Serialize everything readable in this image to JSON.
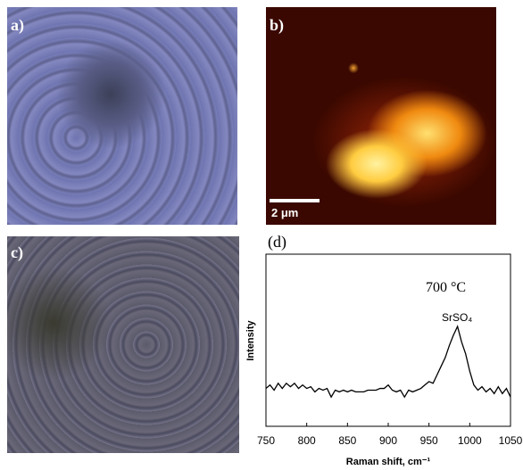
{
  "panels": {
    "a": "a)",
    "b": "b)",
    "c": "c)"
  },
  "scale_bar": "2 μm",
  "chart_data": {
    "type": "line",
    "panel_label": "(d)",
    "annotations": [
      "700 °C",
      "SrSO₄"
    ],
    "xlabel": "Raman shift, cm⁻¹",
    "ylabel": "Intensity",
    "x": [
      750,
      755,
      760,
      765,
      770,
      775,
      780,
      785,
      790,
      795,
      800,
      805,
      810,
      815,
      820,
      825,
      830,
      835,
      840,
      845,
      850,
      855,
      860,
      865,
      870,
      875,
      880,
      885,
      890,
      895,
      900,
      905,
      910,
      915,
      920,
      925,
      930,
      935,
      940,
      945,
      950,
      955,
      960,
      965,
      970,
      975,
      980,
      985,
      990,
      995,
      1000,
      1005,
      1010,
      1015,
      1020,
      1025,
      1030,
      1035,
      1040,
      1045,
      1050
    ],
    "series": [
      {
        "color": "#000000",
        "values": [
          22,
          24,
          21,
          25,
          22,
          25,
          23,
          25,
          22,
          24,
          22,
          23,
          20,
          22,
          21,
          22,
          17,
          21,
          20,
          21,
          20,
          21,
          20,
          20,
          20,
          21,
          21,
          21,
          22,
          22,
          24,
          21,
          20,
          21,
          17,
          21,
          20,
          21,
          22,
          24,
          26,
          25,
          30,
          35,
          40,
          47,
          53,
          58,
          49,
          42,
          32,
          24,
          21,
          23,
          20,
          22,
          19,
          23,
          19,
          22,
          17
        ]
      }
    ],
    "xlim": [
      750,
      1050
    ],
    "xticks": [
      750,
      800,
      850,
      900,
      950,
      1000,
      1050
    ],
    "ylim": [
      0,
      100
    ]
  }
}
